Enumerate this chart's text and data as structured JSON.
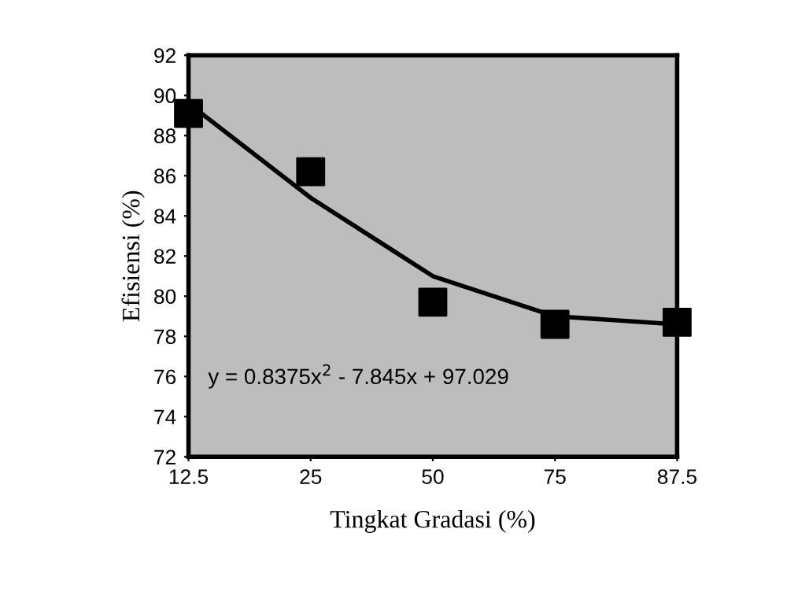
{
  "chart_data": {
    "type": "scatter",
    "xlabel": "Tingkat Gradasi (%)",
    "ylabel": "Efisiensi (%)",
    "categories": [
      "12.5",
      "25",
      "50",
      "75",
      "87.5"
    ],
    "series": [
      {
        "color": "#000000",
        "marker": "square",
        "values": [
          89.1,
          86.2,
          79.7,
          78.6,
          78.7
        ]
      },
      {
        "type": "line",
        "color": "#000000",
        "marker": "none",
        "line_style": "solid",
        "values": [
          89.6,
          84.9,
          81.0,
          79.0,
          78.6
        ]
      }
    ],
    "ylim": [
      72,
      92
    ],
    "yticks": [
      72,
      74,
      76,
      78,
      80,
      82,
      84,
      86,
      88,
      90,
      92
    ],
    "grid": false,
    "legend": false,
    "annotations": [
      "y = 0.8375x$^{2}$ - 7.845x + 97.029"
    ]
  }
}
